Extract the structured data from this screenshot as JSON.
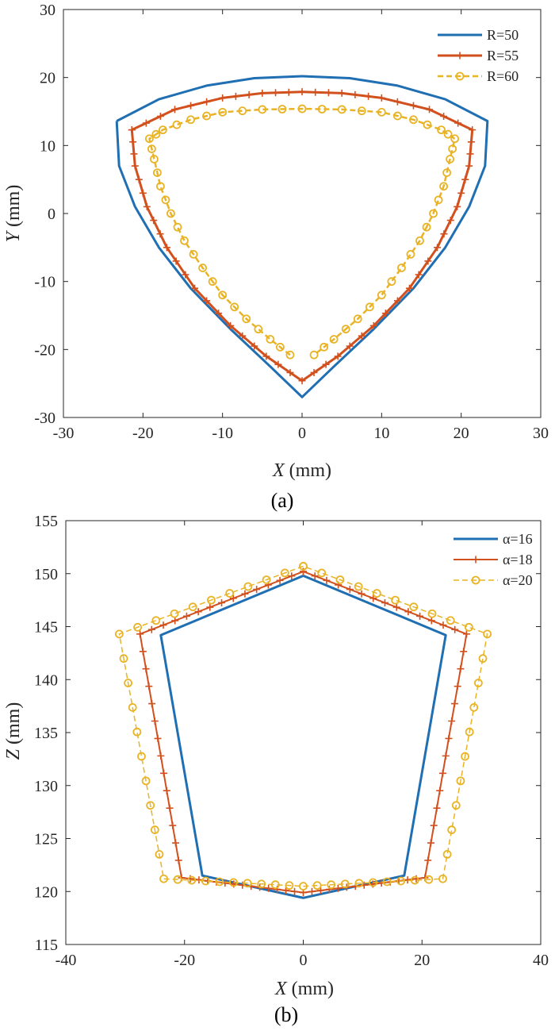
{
  "colors": {
    "blue": "#1f6fb2",
    "red": "#d2501d",
    "yellow": "#e8b325",
    "axis": "#262626"
  },
  "chart_data": [
    {
      "type": "line",
      "caption": "(a)",
      "xlabel_var": "X",
      "xlabel_unit": " (mm)",
      "ylabel_var": "Y",
      "ylabel_unit": " (mm)",
      "xlim": [
        -30,
        30
      ],
      "ylim": [
        -30,
        30
      ],
      "xticks": [
        -30,
        -20,
        -10,
        0,
        10,
        20,
        30
      ],
      "yticks": [
        -30,
        -20,
        -10,
        0,
        10,
        20,
        30
      ],
      "xtick_labels": [
        "-30",
        "-20",
        "-10",
        "0",
        "10",
        "20",
        "30"
      ],
      "ytick_labels": [
        "-30",
        "-20",
        "-10",
        "0",
        "10",
        "20",
        "30"
      ],
      "legend_position": "top-right",
      "series": [
        {
          "name": "R=50",
          "marker": "none",
          "dashed": false,
          "color_key": "blue",
          "points": [
            [
              -23.3,
              13.6
            ],
            [
              -18,
              16.8
            ],
            [
              -12,
              18.8
            ],
            [
              -6,
              19.9
            ],
            [
              0,
              20.2
            ],
            [
              6,
              19.9
            ],
            [
              12,
              18.8
            ],
            [
              18,
              16.8
            ],
            [
              23.3,
              13.6
            ],
            [
              23,
              7
            ],
            [
              21,
              1
            ],
            [
              18,
              -5
            ],
            [
              14,
              -11
            ],
            [
              9,
              -17
            ],
            [
              4,
              -22.5
            ],
            [
              0,
              -27
            ],
            [
              -4,
              -22.5
            ],
            [
              -9,
              -17
            ],
            [
              -14,
              -11
            ],
            [
              -18,
              -5
            ],
            [
              -21,
              1
            ],
            [
              -23,
              7
            ],
            [
              -23.3,
              13.6
            ]
          ]
        },
        {
          "name": "R=55",
          "marker": "plus",
          "dashed": false,
          "color_key": "red",
          "points": [
            [
              -21.4,
              12.3
            ],
            [
              -16,
              15.3
            ],
            [
              -10,
              17
            ],
            [
              -5,
              17.7
            ],
            [
              0,
              17.9
            ],
            [
              5,
              17.7
            ],
            [
              10,
              17
            ],
            [
              16,
              15.3
            ],
            [
              21.4,
              12.3
            ],
            [
              21,
              7
            ],
            [
              19.5,
              1
            ],
            [
              17,
              -5
            ],
            [
              13.5,
              -11
            ],
            [
              9,
              -16.5
            ],
            [
              4.5,
              -21
            ],
            [
              0,
              -24.6
            ],
            [
              -4.5,
              -21
            ],
            [
              -9,
              -16.5
            ],
            [
              -13.5,
              -11
            ],
            [
              -17,
              -5
            ],
            [
              -19.5,
              1
            ],
            [
              -21,
              7
            ],
            [
              -21.4,
              12.3
            ]
          ]
        },
        {
          "name": "R=60",
          "marker": "circle",
          "dashed": true,
          "color_key": "yellow",
          "points": [
            [
              -1.5,
              -20.8
            ],
            [
              -4,
              -18.5
            ],
            [
              -7,
              -15.5
            ],
            [
              -10,
              -12
            ],
            [
              -12.5,
              -8
            ],
            [
              -14.8,
              -4
            ],
            [
              -16.5,
              0
            ],
            [
              -17.8,
              4
            ],
            [
              -18.6,
              8
            ],
            [
              -19.2,
              11
            ],
            [
              -17.5,
              12.3
            ],
            [
              -14,
              13.8
            ],
            [
              -10,
              14.9
            ],
            [
              -5,
              15.3
            ],
            [
              0,
              15.4
            ],
            [
              5,
              15.3
            ],
            [
              10,
              14.9
            ],
            [
              14,
              13.8
            ],
            [
              17.5,
              12.3
            ],
            [
              19.2,
              11
            ],
            [
              18.6,
              8
            ],
            [
              17.8,
              4
            ],
            [
              16.5,
              0
            ],
            [
              14.8,
              -4
            ],
            [
              12.5,
              -8
            ],
            [
              10,
              -12
            ],
            [
              7,
              -15.5
            ],
            [
              4,
              -18.5
            ],
            [
              1.5,
              -20.8
            ]
          ]
        }
      ]
    },
    {
      "type": "line",
      "caption": "(b)",
      "xlabel_var": "X",
      "xlabel_unit": "  (mm)",
      "ylabel_var": "Z",
      "ylabel_unit": "  (mm)",
      "xlim": [
        -40,
        40
      ],
      "ylim": [
        115,
        155
      ],
      "xticks": [
        -40,
        -20,
        0,
        20,
        40
      ],
      "yticks": [
        115,
        120,
        125,
        130,
        135,
        140,
        145,
        150,
        155
      ],
      "xtick_labels": [
        "-40",
        "-20",
        "0",
        "20",
        "40"
      ],
      "ytick_labels": [
        "115",
        "120",
        "125",
        "130",
        "135",
        "140",
        "145",
        "150",
        "155"
      ],
      "legend_position": "top-right",
      "series": [
        {
          "name": "α=16",
          "marker": "none",
          "dashed": false,
          "color_key": "blue",
          "points": [
            [
              0,
              149.8
            ],
            [
              -24,
              144.2
            ],
            [
              -17,
              121.5
            ],
            [
              0,
              119.4
            ],
            [
              17,
              121.5
            ],
            [
              24,
              144.2
            ],
            [
              0,
              149.8
            ]
          ]
        },
        {
          "name": "α=18",
          "marker": "plus",
          "dashed": false,
          "color_key": "red",
          "points": [
            [
              0,
              150.2
            ],
            [
              -27.5,
              144.3
            ],
            [
              -20.5,
              121.3
            ],
            [
              0,
              119.9
            ],
            [
              20.5,
              121.3
            ],
            [
              27.5,
              144.3
            ],
            [
              0,
              150.2
            ]
          ]
        },
        {
          "name": "α=20",
          "marker": "circle",
          "dashed": true,
          "color_key": "yellow",
          "points": [
            [
              0,
              150.7
            ],
            [
              -31,
              144.3
            ],
            [
              -23.5,
              121.2
            ],
            [
              0,
              120.5
            ],
            [
              23.5,
              121.2
            ],
            [
              31,
              144.3
            ],
            [
              0,
              150.7
            ]
          ]
        }
      ]
    }
  ]
}
